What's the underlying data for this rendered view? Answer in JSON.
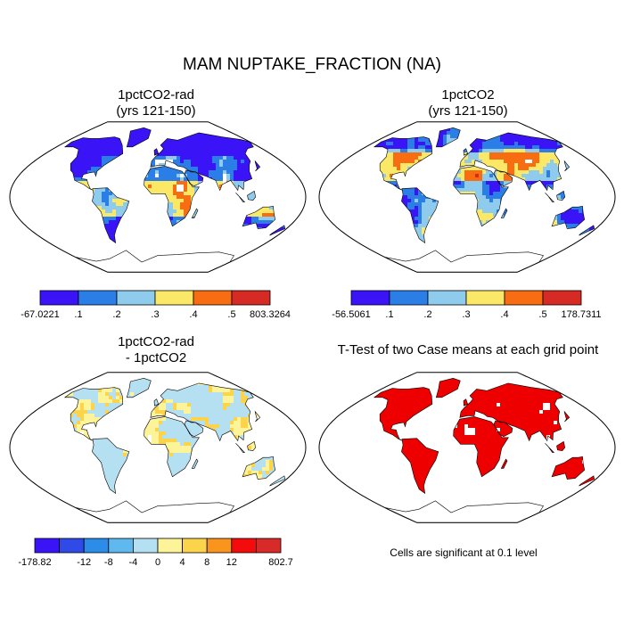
{
  "title": "MAM NUPTAKE_FRACTION (NA)",
  "panels": [
    {
      "id": "p1",
      "title_line1": "1pctCO2-rad",
      "title_line2": "(yrs 121-150)",
      "colorbar": {
        "colors": [
          "#3a14f6",
          "#2a7ee6",
          "#8ecbed",
          "#fbe866",
          "#f86d12",
          "#d62a24"
        ],
        "labels": [
          "-67.0221",
          ".1",
          ".2",
          ".3",
          ".4",
          ".5",
          "803.3264"
        ]
      }
    },
    {
      "id": "p2",
      "title_line1": "1pctCO2",
      "title_line2": "(yrs 121-150)",
      "colorbar": {
        "colors": [
          "#3a14f6",
          "#2a7ee6",
          "#8ecbed",
          "#fbe866",
          "#f86d12",
          "#d62a24"
        ],
        "labels": [
          "-56.5061",
          ".1",
          ".2",
          ".3",
          ".4",
          ".5",
          "178.7311"
        ]
      }
    },
    {
      "id": "p3",
      "title_line1": "1pctCO2-rad",
      "title_line2": "- 1pctCO2",
      "colorbar": {
        "colors": [
          "#3a14f6",
          "#2f4ae7",
          "#2b8de8",
          "#60b9ee",
          "#b4e0f2",
          "#fdf49a",
          "#fbd44b",
          "#f9951d",
          "#f40c0c",
          "#d92a2a"
        ],
        "labels": [
          "-178.82",
          "",
          "-12",
          "-8",
          "-4",
          "0",
          "4",
          "8",
          "12",
          "",
          "802.7"
        ]
      }
    },
    {
      "id": "p4",
      "title_line1": "T-Test of two Case means at each grid point",
      "title_line2": "",
      "note": "Cells are significant at 0.1 level"
    }
  ]
}
